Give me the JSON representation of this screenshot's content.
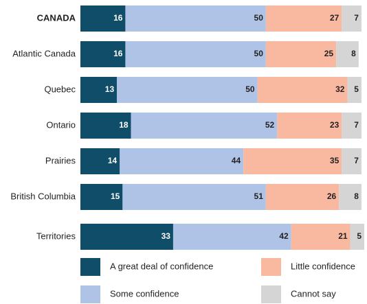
{
  "chart_data": {
    "type": "stacked-bar-horizontal",
    "categories": [
      "CANADA",
      "Atlantic Canada",
      "Quebec",
      "Ontario",
      "Prairies",
      "British Columbia",
      "Territories"
    ],
    "series": [
      {
        "name": "A great deal of confidence",
        "color": "#0f4d69",
        "label_color": "#ffffff",
        "values": [
          16,
          16,
          13,
          18,
          14,
          15,
          33
        ]
      },
      {
        "name": "Some confidence",
        "color": "#aec3e6",
        "label_color": "#231f20",
        "values": [
          50,
          50,
          50,
          52,
          44,
          51,
          42
        ]
      },
      {
        "name": "Little confidence",
        "color": "#f9b9a0",
        "label_color": "#231f20",
        "values": [
          27,
          25,
          32,
          23,
          35,
          26,
          21
        ]
      },
      {
        "name": "Cannot say",
        "color": "#d5d5d6",
        "label_color": "#231f20",
        "values": [
          7,
          8,
          5,
          7,
          7,
          8,
          5
        ]
      }
    ]
  }
}
